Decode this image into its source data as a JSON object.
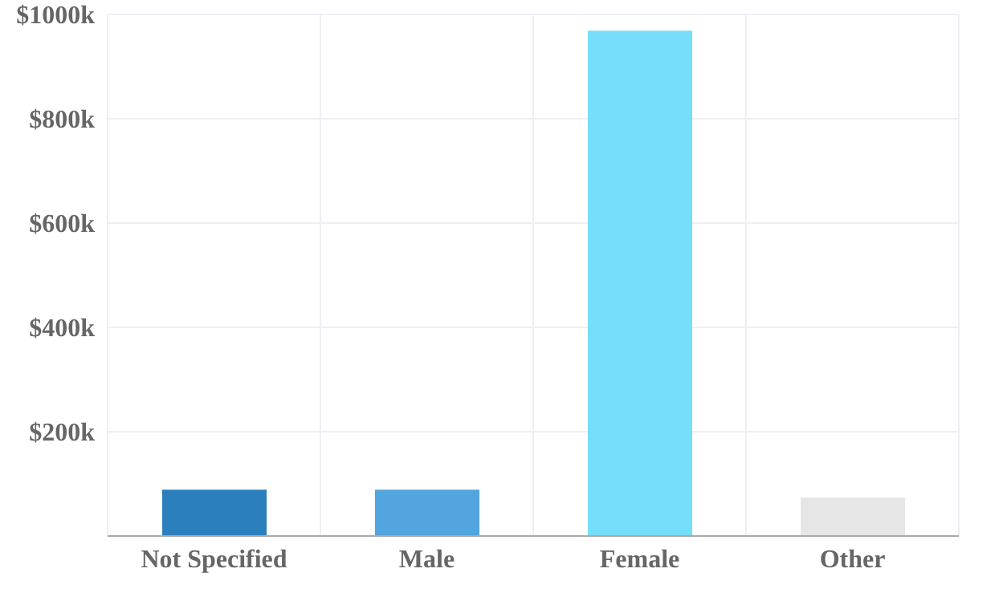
{
  "chart_data": {
    "type": "bar",
    "categories": [
      "Not Specified",
      "Male",
      "Female",
      "Other"
    ],
    "values": [
      89,
      89,
      969,
      74
    ],
    "colors": [
      "#2b7fbd",
      "#52a5de",
      "#76ddfa",
      "#e6e6e6"
    ],
    "ylim": [
      0,
      1000
    ],
    "yticks": [
      {
        "value": 0,
        "label": null
      },
      {
        "value": 200,
        "label": "$200k"
      },
      {
        "value": 400,
        "label": "$400k"
      },
      {
        "value": 600,
        "label": "$600k"
      },
      {
        "value": 800,
        "label": "$800k"
      },
      {
        "value": 1000,
        "label": "$1000k"
      }
    ],
    "grid": true
  }
}
